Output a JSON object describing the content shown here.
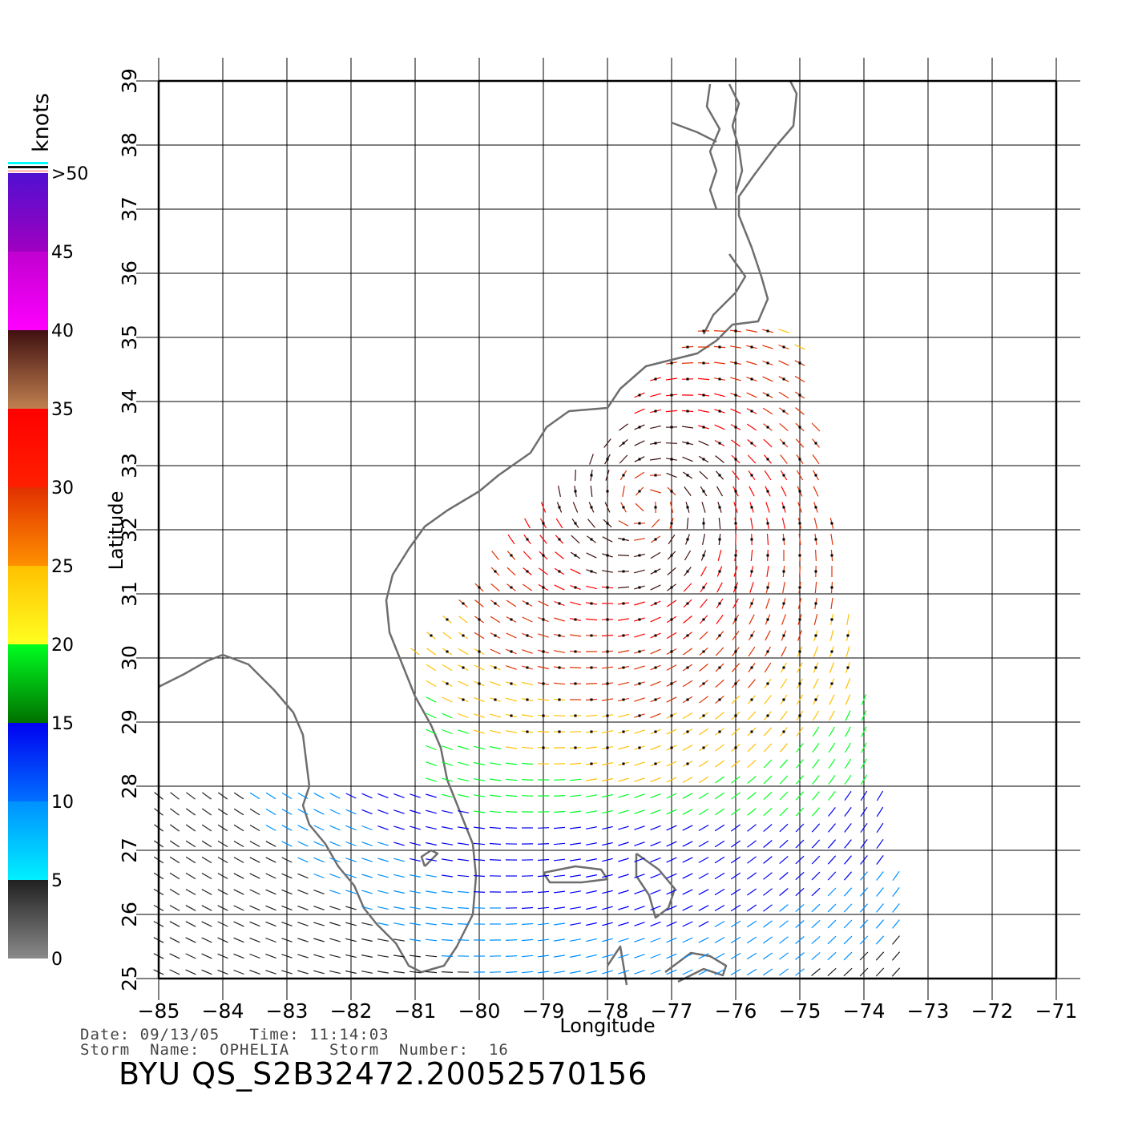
{
  "map": {
    "xlabel": "Longitude",
    "ylabel": "Latitude",
    "lon_range": [
      -85,
      -71
    ],
    "lat_range": [
      25,
      39
    ],
    "lon_ticks": [
      "−85",
      "−84",
      "−83",
      "−82",
      "−81",
      "−80",
      "−79",
      "−78",
      "−77",
      "−76",
      "−75",
      "−74",
      "−73",
      "−72",
      "−71"
    ],
    "lat_ticks": [
      "25",
      "26",
      "27",
      "28",
      "29",
      "30",
      "31",
      "32",
      "33",
      "34",
      "35",
      "36",
      "37",
      "38",
      "39"
    ],
    "grid": true,
    "coast_color": "#6e6e6e"
  },
  "legend": {
    "unit": "knots",
    "labels": [
      "0",
      "5",
      "10",
      "15",
      "20",
      "25",
      "30",
      "35",
      "40",
      "45",
      ">50"
    ],
    "bands": [
      {
        "from": 0,
        "to": 5,
        "colors": [
          "#8a8a8a",
          "#202020"
        ]
      },
      {
        "from": 5,
        "to": 10,
        "colors": [
          "#00f0ff",
          "#0090ff"
        ]
      },
      {
        "from": 10,
        "to": 15,
        "colors": [
          "#0070ff",
          "#0000f0"
        ]
      },
      {
        "from": 15,
        "to": 20,
        "colors": [
          "#007000",
          "#00ff20"
        ]
      },
      {
        "from": 20,
        "to": 25,
        "colors": [
          "#ffff20",
          "#ffc000"
        ]
      },
      {
        "from": 25,
        "to": 30,
        "colors": [
          "#ff9000",
          "#e03000"
        ]
      },
      {
        "from": 30,
        "to": 35,
        "colors": [
          "#ff2000",
          "#ff0000"
        ]
      },
      {
        "from": 35,
        "to": 40,
        "colors": [
          "#c08050",
          "#401010"
        ]
      },
      {
        "from": 40,
        "to": 45,
        "colors": [
          "#ff00ff",
          "#c000d0"
        ]
      },
      {
        "from": 45,
        "to": 50,
        "colors": [
          "#a000c0",
          "#5010d0"
        ]
      }
    ],
    "top_stripes": [
      "#ffc0c0",
      "#101010",
      "#00ffff"
    ]
  },
  "storm": {
    "date_line": "Date: 09/13/05   Time: 11:14:03",
    "name_line": "Storm  Name:  OPHELIA    Storm  Number:  16",
    "title": "BYU  QS_S2B32472.20052570156",
    "center_lon": -77.4,
    "center_lat": 32.4
  }
}
